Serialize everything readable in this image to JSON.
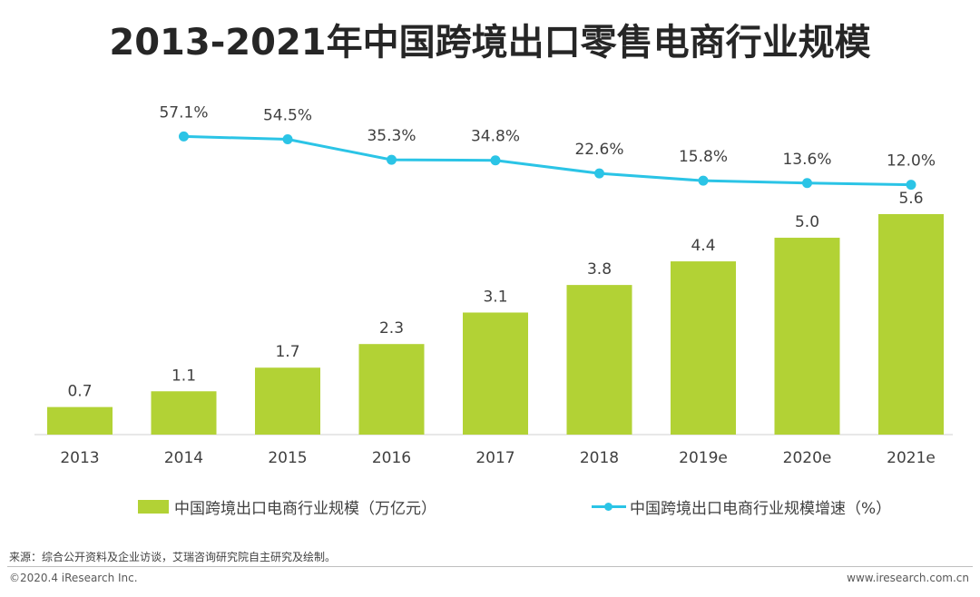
{
  "title": "2013-2021年中国跨境出口零售电商行业规模",
  "chart_data": {
    "type": "bar+line",
    "categories": [
      "2013",
      "2014",
      "2015",
      "2016",
      "2017",
      "2018",
      "2019e",
      "2020e",
      "2021e"
    ],
    "series": [
      {
        "name": "中国跨境出口电商行业规模（万亿元）",
        "type": "bar",
        "color": "#b2d235",
        "values": [
          0.7,
          1.1,
          1.7,
          2.3,
          3.1,
          3.8,
          4.4,
          5.0,
          5.6
        ],
        "labels": [
          "0.7",
          "1.1",
          "1.7",
          "2.3",
          "3.1",
          "3.8",
          "4.4",
          "5.0",
          "5.6"
        ]
      },
      {
        "name": "中国跨境出口电商行业规模增速（%）",
        "type": "line",
        "color": "#2bc4e6",
        "values": [
          null,
          57.1,
          54.5,
          35.3,
          34.8,
          22.6,
          15.8,
          13.6,
          12.0
        ],
        "labels": [
          null,
          "57.1%",
          "54.5%",
          "35.3%",
          "34.8%",
          "22.6%",
          "15.8%",
          "13.6%",
          "12.0%"
        ]
      }
    ],
    "ylim_bar": [
      0,
      6
    ],
    "ylim_line": [
      0,
      60
    ],
    "legend_position": "bottom",
    "grid": false
  },
  "footer": {
    "source": "来源：综合公开资料及企业访谈，艾瑞咨询研究院自主研究及绘制。",
    "copyright": "©2020.4 iResearch Inc.",
    "website": "www.iresearch.com.cn"
  }
}
